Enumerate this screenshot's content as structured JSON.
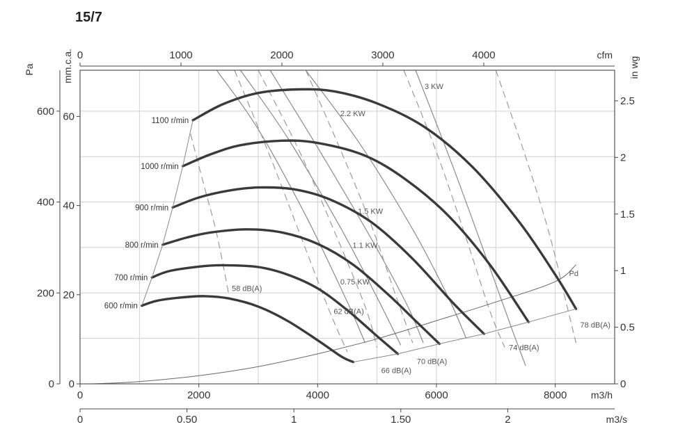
{
  "title": "15/7",
  "chart_data": {
    "type": "line",
    "title": "15/7",
    "xlabel": "m3/h",
    "ylabel": "Pa",
    "xlim": [
      0,
      9000
    ],
    "ylim": [
      0,
      690
    ],
    "grid": true,
    "axes": {
      "bottom_primary": {
        "unit": "m3/h",
        "ticks": [
          "0",
          "2000",
          "4000",
          "6000",
          "8000"
        ],
        "values": [
          0,
          2000,
          4000,
          6000,
          8000
        ]
      },
      "bottom_secondary": {
        "unit": "m3/s",
        "ticks": [
          "0",
          "0.50",
          "1",
          "1.50",
          "2"
        ],
        "values": [
          0,
          0.5,
          1,
          1.5,
          2
        ]
      },
      "top": {
        "unit": "cfm",
        "ticks": [
          "0",
          "1000",
          "2000",
          "3000",
          "4000"
        ],
        "values": [
          0,
          1000,
          2000,
          3000,
          4000
        ]
      },
      "left_primary": {
        "unit": "Pa",
        "ticks": [
          "0",
          "200",
          "400",
          "600"
        ],
        "values": [
          0,
          200,
          400,
          600
        ]
      },
      "left_secondary": {
        "unit": "mm.c.a.",
        "ticks": [
          "0",
          "20",
          "40",
          "60"
        ],
        "values": [
          0,
          20,
          40,
          60
        ]
      },
      "right": {
        "unit": "in wg",
        "ticks": [
          "0",
          "0.5",
          "1",
          "1.5",
          "2",
          "2.5"
        ],
        "values": [
          0,
          0.5,
          1,
          1.5,
          2,
          2.5
        ]
      }
    },
    "series": [
      {
        "name": "600 r/min",
        "points": [
          [
            1040,
            172
          ],
          [
            1300,
            183
          ],
          [
            1700,
            190
          ],
          [
            2100,
            193
          ],
          [
            2500,
            188
          ],
          [
            3000,
            170
          ],
          [
            3500,
            138
          ],
          [
            4000,
            96
          ],
          [
            4400,
            60
          ],
          [
            4600,
            48
          ]
        ]
      },
      {
        "name": "700 r/min",
        "points": [
          [
            1210,
            234
          ],
          [
            1500,
            248
          ],
          [
            2000,
            258
          ],
          [
            2400,
            261
          ],
          [
            3000,
            257
          ],
          [
            3500,
            240
          ],
          [
            4000,
            210
          ],
          [
            4500,
            162
          ],
          [
            5000,
            105
          ],
          [
            5350,
            66
          ]
        ]
      },
      {
        "name": "800 r/min",
        "points": [
          [
            1390,
            306
          ],
          [
            1800,
            322
          ],
          [
            2200,
            333
          ],
          [
            2800,
            340
          ],
          [
            3400,
            333
          ],
          [
            4000,
            308
          ],
          [
            4600,
            262
          ],
          [
            5200,
            195
          ],
          [
            5700,
            132
          ],
          [
            6050,
            88
          ]
        ]
      },
      {
        "name": "900 r/min",
        "points": [
          [
            1560,
            388
          ],
          [
            2000,
            410
          ],
          [
            2500,
            425
          ],
          [
            3000,
            432
          ],
          [
            3600,
            428
          ],
          [
            4200,
            406
          ],
          [
            4900,
            356
          ],
          [
            5600,
            275
          ],
          [
            6300,
            175
          ],
          [
            6800,
            110
          ]
        ]
      },
      {
        "name": "1000 r/min",
        "points": [
          [
            1730,
            479
          ],
          [
            2200,
            505
          ],
          [
            2700,
            525
          ],
          [
            3400,
            535
          ],
          [
            4000,
            530
          ],
          [
            4800,
            502
          ],
          [
            5500,
            448
          ],
          [
            6200,
            370
          ],
          [
            6900,
            262
          ],
          [
            7550,
            136
          ]
        ]
      },
      {
        "name": "1100 r/min",
        "points": [
          [
            1900,
            580
          ],
          [
            2400,
            615
          ],
          [
            3000,
            640
          ],
          [
            3700,
            648
          ],
          [
            4300,
            643
          ],
          [
            5000,
            617
          ],
          [
            5800,
            565
          ],
          [
            6600,
            478
          ],
          [
            7400,
            355
          ],
          [
            8000,
            240
          ],
          [
            8350,
            165
          ]
        ]
      }
    ],
    "pd_curve": {
      "name": "Pd",
      "points": [
        [
          200,
          0
        ],
        [
          1000,
          5
        ],
        [
          2000,
          18
        ],
        [
          3000,
          38
        ],
        [
          4000,
          66
        ],
        [
          5000,
          99
        ],
        [
          6000,
          139
        ],
        [
          7000,
          180
        ],
        [
          8000,
          225
        ],
        [
          8350,
          262
        ]
      ]
    },
    "power_lines": [
      {
        "label": "0.75 KW",
        "points": [
          [
            2300,
            690
          ],
          [
            3000,
            560
          ],
          [
            3800,
            370
          ],
          [
            4500,
            180
          ],
          [
            4800,
            90
          ]
        ]
      },
      {
        "label": "1.1 KW",
        "points": [
          [
            2700,
            690
          ],
          [
            3500,
            540
          ],
          [
            4400,
            340
          ],
          [
            5000,
            190
          ],
          [
            5400,
            85
          ]
        ]
      },
      {
        "label": "1.5 KW",
        "points": [
          [
            3200,
            690
          ],
          [
            4000,
            520
          ],
          [
            4900,
            320
          ],
          [
            5500,
            175
          ],
          [
            5780,
            90
          ]
        ]
      },
      {
        "label": "2.2 KW",
        "points": [
          [
            3800,
            690
          ],
          [
            4700,
            530
          ],
          [
            5600,
            340
          ],
          [
            6200,
            190
          ],
          [
            6500,
            100
          ]
        ]
      },
      {
        "label": "3 KW",
        "points": [
          [
            5650,
            690
          ],
          [
            6300,
            470
          ],
          [
            6900,
            255
          ],
          [
            7300,
            110
          ],
          [
            7500,
            40
          ]
        ]
      }
    ],
    "noise_lines": [
      {
        "label": "58 dB(A)",
        "points": [
          [
            1860,
            550
          ],
          [
            2100,
            430
          ],
          [
            2300,
            330
          ],
          [
            2500,
            200
          ]
        ]
      },
      {
        "label": "62 dB(A)",
        "points": [
          [
            2600,
            690
          ],
          [
            3200,
            500
          ],
          [
            3700,
            330
          ],
          [
            4200,
            160
          ],
          [
            4500,
            70
          ]
        ]
      },
      {
        "label": "66 dB(A)",
        "points": [
          [
            3000,
            690
          ],
          [
            3700,
            510
          ],
          [
            4300,
            330
          ],
          [
            4800,
            170
          ],
          [
            5000,
            80
          ]
        ]
      },
      {
        "label": "70 dB(A)",
        "points": [
          [
            3800,
            690
          ],
          [
            4400,
            510
          ],
          [
            4900,
            350
          ],
          [
            5300,
            200
          ],
          [
            5600,
            90
          ]
        ]
      },
      {
        "label": "74 dB(A)",
        "points": [
          [
            5450,
            690
          ],
          [
            6000,
            510
          ],
          [
            6500,
            320
          ],
          [
            6900,
            160
          ],
          [
            7150,
            80
          ]
        ]
      },
      {
        "label": "78 dB(A)",
        "points": [
          [
            7000,
            690
          ],
          [
            7500,
            500
          ],
          [
            7900,
            330
          ],
          [
            8200,
            170
          ],
          [
            8350,
            90
          ]
        ]
      }
    ],
    "labels": {
      "pd": "Pd",
      "speeds": [
        "600 r/min",
        "700 r/min",
        "800 r/min",
        "900 r/min",
        "1000 r/min",
        "1100 r/min"
      ],
      "powers": [
        "0.75 KW",
        "1.1 KW",
        "1.5 KW",
        "2.2 KW",
        "3 KW"
      ],
      "noises": [
        "58 dB(A)",
        "62 dB(A)",
        "66 dB(A)",
        "70 dB(A)",
        "74 dB(A)",
        "78 dB(A)"
      ]
    }
  }
}
